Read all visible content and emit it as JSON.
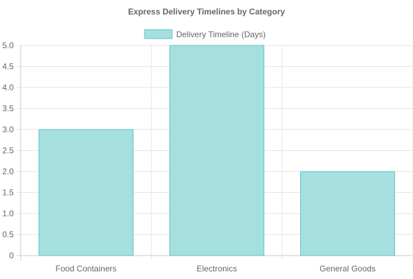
{
  "chart_data": {
    "type": "bar",
    "title": "Express Delivery Timelines by Category",
    "categories": [
      "Food Containers",
      "Electronics",
      "General Goods"
    ],
    "series": [
      {
        "name": "Delivery Timeline (Days)",
        "values": [
          3,
          5,
          2
        ],
        "fill_color": "#a6dfe0",
        "border_color": "#5fc4c5"
      }
    ],
    "xlabel": "",
    "ylabel": "",
    "ylim": [
      0,
      5
    ],
    "y_ticks": [
      "0",
      "0.5",
      "1.0",
      "1.5",
      "2.0",
      "2.5",
      "3.0",
      "3.5",
      "4.0",
      "4.5",
      "5.0"
    ],
    "grid": true,
    "legend_position": "top",
    "colors": {
      "title": "#666666",
      "tick_label": "#666666",
      "grid": "#e6e6e6",
      "axis": "#c8c8c8"
    }
  }
}
